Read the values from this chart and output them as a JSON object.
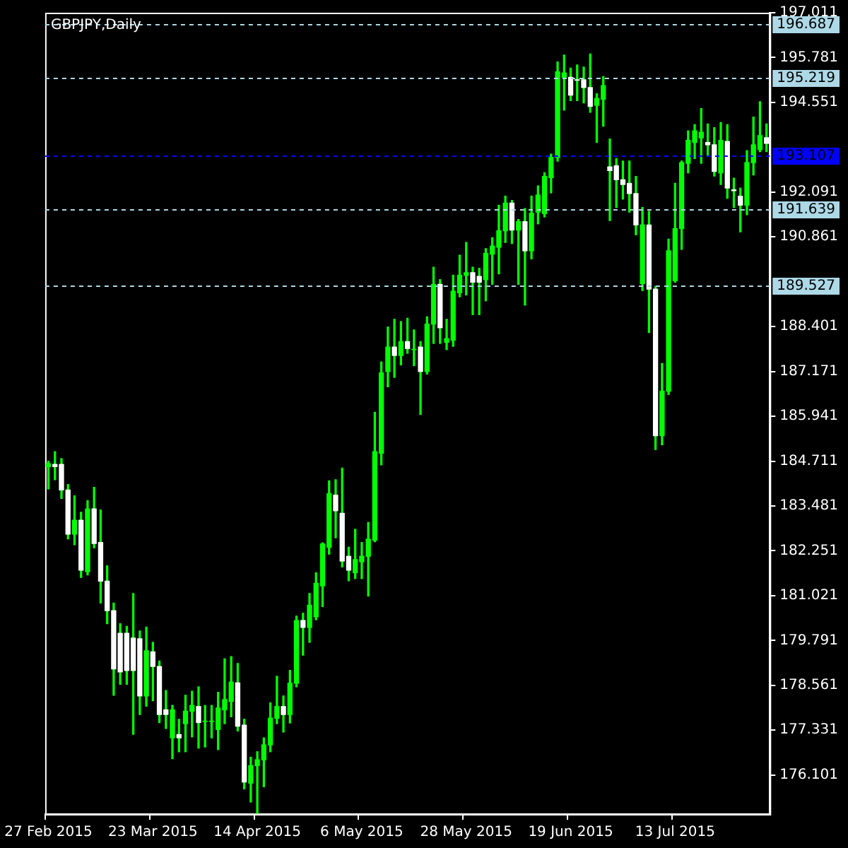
{
  "chart_data": {
    "type": "candlestick",
    "title": "GBPJPY,Daily",
    "categories": [
      "27 Feb 2015",
      null,
      null,
      null,
      null,
      null,
      null,
      null,
      null,
      null,
      null,
      null,
      null,
      null,
      null,
      null,
      "23 Mar 2015",
      null,
      null,
      null,
      null,
      null,
      null,
      null,
      null,
      null,
      null,
      null,
      null,
      null,
      null,
      null,
      "14 Apr 2015",
      null,
      null,
      null,
      null,
      null,
      null,
      null,
      null,
      null,
      null,
      null,
      null,
      null,
      null,
      null,
      "6 May 2015",
      null,
      null,
      null,
      null,
      null,
      null,
      null,
      null,
      null,
      null,
      null,
      null,
      null,
      null,
      null,
      "28 May 2015",
      null,
      null,
      null,
      null,
      null,
      null,
      null,
      null,
      null,
      null,
      null,
      null,
      null,
      null,
      null,
      "19 Jun 2015",
      null,
      null,
      null,
      null,
      null,
      null,
      null,
      null,
      null,
      null,
      null,
      null,
      null,
      null,
      null,
      "13 Jul 2015",
      null,
      null,
      null,
      null,
      null,
      null,
      null,
      null,
      null,
      null,
      null,
      null,
      null,
      null
    ],
    "color": "#00ff00",
    "colors": [
      "#00ff00",
      "#ffffff",
      "#ffffff",
      "#ffffff",
      "#00ff00",
      "#ffffff",
      "#00ff00",
      "#ffffff",
      "#ffffff",
      "#ffffff",
      "#ffffff",
      "#ffffff",
      "#ffffff",
      "#ffffff",
      "#ffffff",
      "#00ff00",
      "#ffffff",
      "#ffffff",
      "#ffffff",
      "#00ff00",
      "#ffffff",
      "#00ff00",
      "#00ff00",
      "#ffffff",
      "#00ff00",
      "#00ff00",
      "#00ff00",
      "#00ff00",
      "#00ff00",
      "#ffffff",
      "#ffffff",
      "#00ff00",
      "#00ff00",
      "#00ff00",
      "#00ff00",
      "#00ff00",
      "#ffffff",
      "#00ff00",
      "#00ff00",
      "#ffffff",
      "#00ff00",
      "#00ff00",
      "#00ff00",
      "#00ff00",
      "#ffffff",
      "#ffffff",
      "#ffffff",
      "#00ff00",
      "#00ff00",
      "#00ff00",
      "#00ff00",
      "#00ff00",
      "#00ff00",
      "#ffffff",
      "#00ff00",
      "#ffffff",
      "#00ff00",
      "#ffffff",
      "#00ff00",
      "#00ff00",
      "#ffffff",
      "#00ff00",
      "#00ff00",
      "#00ff00",
      "#00ff00",
      "#ffffff",
      "#ffffff",
      "#00ff00",
      "#00ff00",
      "#00ff00",
      "#00ff00",
      "#ffffff",
      "#00ff00",
      "#ffffff",
      "#00ff00",
      "#00ff00",
      "#00ff00",
      "#00ff00",
      "#00ff00",
      "#00ff00",
      "#ffffff",
      "#ffffff",
      "#ffffff",
      "#ffffff",
      "#00ff00",
      "#00ff00",
      "#ffffff",
      "#ffffff",
      "#ffffff",
      "#ffffff",
      "#ffffff",
      "#00ff00",
      "#ffffff",
      "#ffffff",
      "#00ff00",
      "#00ff00",
      "#00ff00",
      "#00ff00",
      "#00ff00",
      "#00ff00",
      "#00ff00",
      "#ffffff",
      "#ffffff",
      "#00ff00",
      "#ffffff",
      "#ffffff",
      "#ffffff",
      "#00ff00",
      "#00ff00",
      "#00ff00",
      "#ffffff"
    ],
    "ohlc": [
      [
        184.56,
        184.71,
        183.95,
        184.64
      ],
      [
        184.62,
        184.97,
        184.2,
        184.56
      ],
      [
        184.62,
        184.78,
        183.69,
        183.92
      ],
      [
        183.92,
        184.07,
        182.58,
        182.71
      ],
      [
        182.71,
        183.76,
        182.42,
        183.09
      ],
      [
        183.09,
        183.31,
        181.52,
        181.72
      ],
      [
        181.68,
        183.63,
        181.59,
        183.4
      ],
      [
        183.4,
        183.99,
        182.33,
        182.45
      ],
      [
        182.48,
        183.37,
        180.82,
        181.42
      ],
      [
        181.42,
        181.84,
        180.25,
        180.61
      ],
      [
        180.61,
        180.82,
        178.29,
        179.01
      ],
      [
        179.99,
        180.25,
        178.59,
        178.93
      ],
      [
        179.99,
        180.18,
        178.59,
        178.97
      ],
      [
        179.86,
        181.08,
        177.22,
        178.97
      ],
      [
        179.84,
        180.05,
        177.76,
        178.27
      ],
      [
        178.27,
        180.16,
        177.99,
        179.51
      ],
      [
        179.48,
        179.74,
        178.14,
        179.08
      ],
      [
        179.08,
        179.23,
        177.54,
        177.76
      ],
      [
        177.89,
        178.42,
        177.38,
        177.76
      ],
      [
        177.12,
        178.01,
        176.55,
        177.89
      ],
      [
        177.21,
        177.63,
        176.74,
        177.12
      ],
      [
        177.51,
        178.29,
        176.74,
        177.85
      ],
      [
        177.85,
        178.4,
        177.15,
        178.01
      ],
      [
        177.98,
        178.52,
        176.84,
        177.54
      ],
      [
        177.57,
        178.01,
        176.87,
        177.58
      ],
      [
        177.57,
        178.01,
        177.12,
        177.58
      ],
      [
        177.35,
        178.37,
        176.8,
        177.94
      ],
      [
        177.89,
        179.29,
        177.51,
        178.17
      ],
      [
        178.12,
        179.35,
        177.7,
        178.65
      ],
      [
        178.63,
        179.16,
        177.31,
        177.44
      ],
      [
        177.47,
        177.63,
        175.72,
        175.91
      ],
      [
        175.88,
        176.59,
        175.36,
        176.36
      ],
      [
        176.36,
        176.74,
        175.05,
        176.52
      ],
      [
        176.52,
        177.12,
        175.78,
        176.93
      ],
      [
        176.93,
        178.08,
        176.74,
        177.66
      ],
      [
        177.66,
        178.81,
        177.51,
        177.98
      ],
      [
        177.98,
        178.27,
        177.28,
        177.76
      ],
      [
        177.76,
        178.97,
        177.53,
        178.62
      ],
      [
        178.62,
        180.46,
        178.52,
        180.34
      ],
      [
        180.34,
        180.54,
        179.39,
        180.15
      ],
      [
        180.15,
        181.08,
        179.74,
        180.76
      ],
      [
        180.44,
        181.65,
        180.36,
        181.36
      ],
      [
        181.29,
        182.47,
        180.72,
        182.44
      ],
      [
        182.35,
        184.17,
        182.16,
        183.82
      ],
      [
        183.78,
        184.2,
        182.61,
        183.35
      ],
      [
        183.28,
        184.52,
        181.81,
        181.97
      ],
      [
        182.1,
        182.35,
        181.43,
        181.72
      ],
      [
        181.65,
        182.84,
        181.49,
        182.01
      ],
      [
        181.95,
        182.48,
        181.49,
        182.1
      ],
      [
        182.1,
        183.03,
        181.01,
        182.57
      ],
      [
        182.54,
        186.05,
        182.5,
        184.97
      ],
      [
        184.93,
        187.43,
        184.61,
        187.13
      ],
      [
        187.17,
        188.39,
        186.75,
        187.84
      ],
      [
        187.84,
        188.6,
        187.01,
        187.61
      ],
      [
        187.61,
        188.54,
        187.35,
        187.99
      ],
      [
        187.99,
        188.63,
        187.67,
        187.8
      ],
      [
        187.77,
        188.31,
        187.33,
        187.78
      ],
      [
        187.84,
        187.99,
        185.99,
        187.17
      ],
      [
        187.17,
        188.67,
        187.1,
        188.47
      ],
      [
        188.47,
        190.03,
        187.94,
        189.56
      ],
      [
        189.56,
        189.69,
        187.94,
        188.37
      ],
      [
        187.97,
        188.6,
        187.77,
        188.07
      ],
      [
        188.03,
        189.81,
        187.86,
        189.37
      ],
      [
        189.33,
        190.36,
        189.22,
        189.81
      ],
      [
        189.81,
        190.71,
        189.27,
        189.88
      ],
      [
        189.88,
        190.03,
        188.73,
        189.62
      ],
      [
        189.78,
        190.0,
        188.73,
        189.62
      ],
      [
        189.69,
        190.54,
        189.11,
        190.41
      ],
      [
        190.39,
        190.84,
        189.56,
        190.61
      ],
      [
        190.58,
        191.73,
        189.85,
        191.03
      ],
      [
        191.03,
        191.98,
        190.71,
        191.79
      ],
      [
        191.79,
        191.86,
        190.68,
        191.05
      ],
      [
        191.05,
        191.34,
        189.56,
        191.28
      ],
      [
        191.28,
        191.64,
        188.99,
        190.48
      ],
      [
        190.48,
        191.98,
        190.26,
        191.51
      ],
      [
        191.54,
        192.26,
        191.22,
        192.01
      ],
      [
        191.5,
        192.62,
        191.41,
        192.52
      ],
      [
        192.49,
        193.13,
        192.07,
        193.04
      ],
      [
        193.04,
        195.66,
        192.94,
        195.39
      ],
      [
        195.24,
        195.85,
        194.34,
        195.36
      ],
      [
        195.24,
        195.49,
        194.6,
        194.75
      ],
      [
        195.17,
        195.58,
        194.6,
        195.16
      ],
      [
        195.17,
        195.52,
        194.54,
        194.96
      ],
      [
        194.96,
        195.88,
        194.28,
        194.44
      ],
      [
        194.47,
        194.79,
        193.45,
        194.66
      ],
      [
        194.64,
        195.26,
        193.9,
        195.01
      ],
      [
        192.78,
        193.55,
        191.31,
        192.68
      ],
      [
        192.81,
        193.01,
        191.67,
        192.43
      ],
      [
        192.43,
        192.94,
        191.9,
        192.3
      ],
      [
        192.33,
        192.94,
        191.54,
        192.05
      ],
      [
        192.05,
        192.52,
        190.92,
        191.19
      ],
      [
        189.58,
        191.67,
        189.39,
        191.19
      ],
      [
        191.19,
        191.56,
        188.24,
        189.43
      ],
      [
        189.43,
        189.5,
        185.03,
        185.41
      ],
      [
        185.41,
        187.39,
        185.16,
        186.63
      ],
      [
        186.63,
        190.8,
        186.54,
        190.48
      ],
      [
        189.66,
        192.33,
        189.62,
        191.09
      ],
      [
        191.09,
        192.94,
        190.52,
        192.9
      ],
      [
        192.88,
        193.77,
        192.62,
        193.51
      ],
      [
        193.45,
        193.94,
        193.01,
        193.77
      ],
      [
        193.58,
        194.38,
        192.88,
        193.73
      ],
      [
        193.45,
        193.96,
        193.07,
        193.39
      ],
      [
        193.39,
        193.86,
        192.53,
        192.66
      ],
      [
        192.62,
        194.0,
        192.3,
        193.51
      ],
      [
        193.48,
        193.94,
        191.92,
        192.2
      ],
      [
        192.15,
        192.47,
        191.67,
        192.13
      ],
      [
        191.98,
        192.2,
        191.0,
        191.73
      ],
      [
        191.73,
        193.23,
        191.47,
        192.9
      ],
      [
        192.9,
        194.15,
        192.56,
        193.39
      ],
      [
        193.26,
        194.57,
        193.2,
        193.64
      ],
      [
        193.58,
        193.96,
        193.2,
        193.43
      ]
    ],
    "ylim": [
      175.03,
      197.011
    ],
    "yticks": [
      176.101,
      177.331,
      178.561,
      179.791,
      181.021,
      182.251,
      183.481,
      184.711,
      185.941,
      187.171,
      188.401,
      190.861,
      192.091,
      194.551,
      195.781,
      197.011
    ],
    "ref_lines": [
      {
        "axis": "y",
        "value": 196.687,
        "label": "196.687",
        "color": "#add8e6",
        "line_style": "dashed"
      },
      {
        "axis": "y",
        "value": 195.219,
        "label": "195.219",
        "color": "#add8e6",
        "line_style": "dashed"
      },
      {
        "axis": "y",
        "value": 193.107,
        "label": "193.107",
        "color": "#0000ff",
        "line_style": "dashed"
      },
      {
        "axis": "y",
        "value": 191.639,
        "label": "191.639",
        "color": "#add8e6",
        "line_style": "dashed"
      },
      {
        "axis": "y",
        "value": 189.527,
        "label": "189.527",
        "color": "#add8e6",
        "line_style": "dashed"
      }
    ]
  }
}
